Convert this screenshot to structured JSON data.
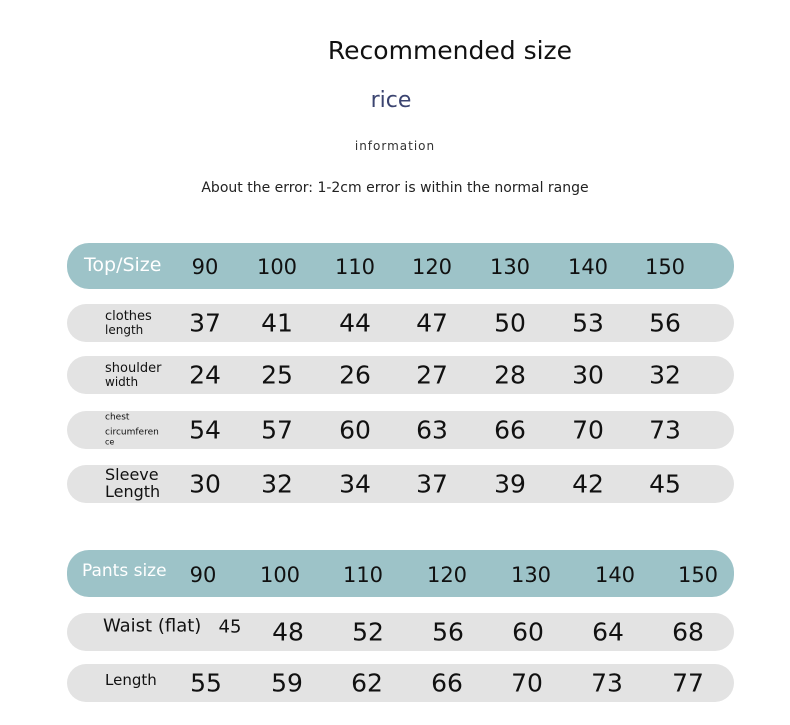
{
  "header": {
    "title": "Recommended size",
    "subtitle": "rice",
    "caption": "information",
    "note": "About the error: 1-2cm error is within the normal range"
  },
  "colors": {
    "header_bar": "#9dc3c8",
    "row_bar": "#e3e3e3",
    "subtitle": "#3b4470"
  },
  "top_table": {
    "header_label": "Top/Size",
    "sizes": [
      "90",
      "100",
      "110",
      "120",
      "130",
      "140",
      "150"
    ],
    "rows": [
      {
        "label_lines": [
          "clothes",
          "length"
        ],
        "values": [
          "37",
          "41",
          "44",
          "47",
          "50",
          "53",
          "56"
        ]
      },
      {
        "label_lines": [
          "shoulder",
          "width"
        ],
        "values": [
          "24",
          "25",
          "26",
          "27",
          "28",
          "30",
          "32"
        ]
      },
      {
        "label_lines": [
          "chest",
          "circumferen",
          "ce"
        ],
        "values": [
          "54",
          "57",
          "60",
          "63",
          "66",
          "70",
          "73"
        ]
      },
      {
        "label_lines": [
          "Sleeve",
          "Length"
        ],
        "values": [
          "30",
          "32",
          "34",
          "37",
          "39",
          "42",
          "45"
        ]
      }
    ]
  },
  "pants_table": {
    "header_label": "Pants size",
    "sizes": [
      "90",
      "100",
      "110",
      "120",
      "130",
      "140",
      "150"
    ],
    "rows": [
      {
        "label_lines": [
          "Waist (flat)"
        ],
        "values": [
          "45",
          "48",
          "52",
          "56",
          "60",
          "64",
          "68"
        ]
      },
      {
        "label_lines": [
          "Length"
        ],
        "values": [
          "55",
          "59",
          "62",
          "66",
          "70",
          "73",
          "77"
        ]
      }
    ]
  }
}
